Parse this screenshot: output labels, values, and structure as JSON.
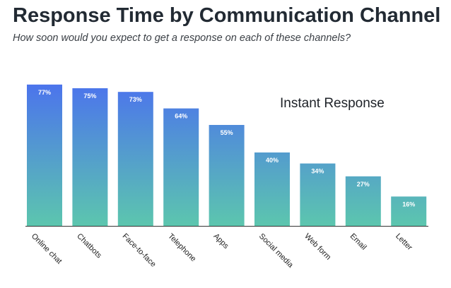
{
  "chart_data": {
    "type": "bar",
    "title": "Response Time by Communication Channel",
    "subtitle": "How soon would you expect to get a response on each of these channels?",
    "annotation": "Instant Response",
    "categories": [
      "Online chat",
      "Chatbots",
      "Face-to-face",
      "Telephone",
      "Apps",
      "Social media",
      "Web form",
      "Email",
      "Letter"
    ],
    "values": [
      77,
      75,
      73,
      64,
      55,
      40,
      34,
      27,
      16
    ],
    "value_labels": [
      "77%",
      "75%",
      "73%",
      "64%",
      "55%",
      "40%",
      "34%",
      "27%",
      "16%"
    ],
    "ylim": [
      0,
      100
    ],
    "unit": "%",
    "grid": false,
    "colors": {
      "bar_top": "#4a6cf2",
      "bar_bottom": "#5cc6ae",
      "axis": "#333333"
    }
  }
}
